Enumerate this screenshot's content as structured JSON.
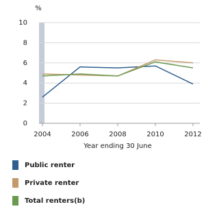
{
  "chart_data": {
    "type": "line",
    "y_unit": "%",
    "xlabel": "Year ending 30 June",
    "categories": [
      "2004",
      "2006",
      "2008",
      "2010",
      "2012"
    ],
    "series": [
      {
        "name": "Public renter",
        "color": "#2e5f8f",
        "values": [
          2.6,
          5.6,
          5.5,
          5.7,
          3.9
        ]
      },
      {
        "name": "Private renter",
        "color": "#c49a6c",
        "values": [
          4.9,
          4.8,
          4.7,
          6.3,
          6.0
        ]
      },
      {
        "name": "Total renters(b)",
        "color": "#6a9a50",
        "values": [
          4.7,
          4.9,
          4.7,
          6.1,
          5.5
        ]
      }
    ],
    "ylim": [
      0,
      10
    ],
    "yticks": [
      0,
      2,
      4,
      6,
      8,
      10
    ],
    "grid": true
  }
}
